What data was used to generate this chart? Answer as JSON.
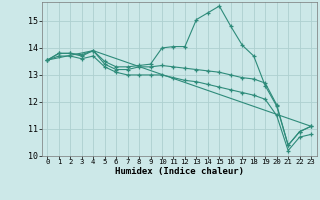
{
  "line1_x": [
    0,
    1,
    2,
    3,
    4,
    5,
    6,
    7,
    8,
    9,
    10,
    11,
    12,
    13,
    14,
    15,
    16,
    17,
    18,
    19,
    20,
    21,
    22,
    23
  ],
  "line1_y": [
    13.55,
    13.8,
    13.8,
    13.75,
    13.9,
    13.5,
    13.3,
    13.3,
    13.35,
    13.4,
    14.0,
    14.05,
    14.05,
    15.05,
    15.3,
    15.55,
    14.8,
    14.1,
    13.7,
    12.6,
    11.85,
    10.4,
    10.9,
    11.1
  ],
  "line2_x": [
    0,
    1,
    2,
    3,
    4,
    5,
    6,
    7,
    8,
    9,
    10,
    11,
    12,
    13,
    14,
    15,
    16,
    17,
    18,
    19,
    20,
    21,
    22,
    23
  ],
  "line2_y": [
    13.55,
    13.8,
    13.8,
    13.7,
    13.9,
    13.4,
    13.2,
    13.2,
    13.3,
    13.3,
    13.35,
    13.3,
    13.25,
    13.2,
    13.15,
    13.1,
    13.0,
    12.9,
    12.85,
    12.7,
    11.9,
    10.4,
    10.9,
    11.1
  ],
  "line3_x": [
    0,
    4,
    23
  ],
  "line3_y": [
    13.55,
    13.9,
    11.1
  ],
  "line4_x": [
    0,
    1,
    2,
    3,
    4,
    5,
    6,
    7,
    8,
    9,
    10,
    11,
    12,
    13,
    14,
    15,
    16,
    17,
    18,
    19,
    20,
    21,
    22,
    23
  ],
  "line4_y": [
    13.55,
    13.7,
    13.7,
    13.6,
    13.7,
    13.3,
    13.1,
    13.0,
    13.0,
    13.0,
    13.0,
    12.9,
    12.8,
    12.75,
    12.65,
    12.55,
    12.45,
    12.35,
    12.25,
    12.1,
    11.5,
    10.2,
    10.7,
    10.8
  ],
  "color": "#2e8b7a",
  "bg_color": "#cce8e8",
  "grid_color": "#aed0d0",
  "xlim": [
    -0.5,
    23.5
  ],
  "ylim": [
    10.0,
    15.7
  ],
  "xlabel": "Humidex (Indice chaleur)",
  "xticks": [
    0,
    1,
    2,
    3,
    4,
    5,
    6,
    7,
    8,
    9,
    10,
    11,
    12,
    13,
    14,
    15,
    16,
    17,
    18,
    19,
    20,
    21,
    22,
    23
  ],
  "yticks": [
    10,
    11,
    12,
    13,
    14,
    15
  ],
  "marker": "+"
}
